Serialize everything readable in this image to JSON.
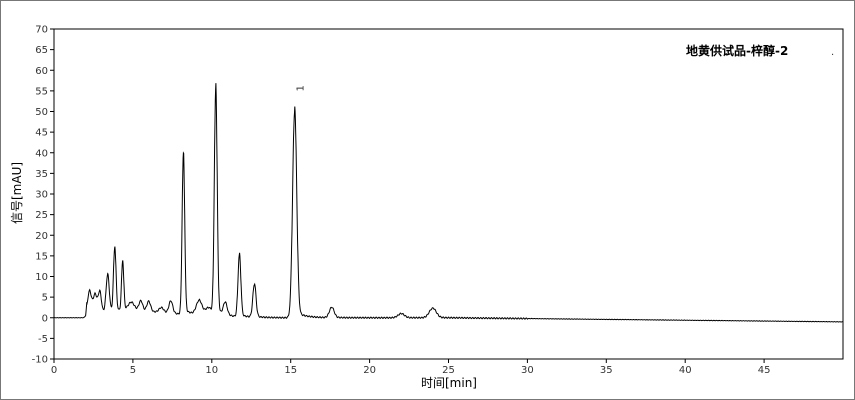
{
  "chart_data": {
    "type": "line",
    "title": "地黄供试品-梓醇-2",
    "xlabel": "时间[min]",
    "ylabel": "信号[mAU]",
    "xlim": [
      0,
      50
    ],
    "ylim": [
      -10,
      70
    ],
    "xticks": [
      0,
      5,
      10,
      15,
      20,
      25,
      30,
      35,
      40,
      45
    ],
    "yticks": [
      -10,
      -5,
      0,
      5,
      10,
      15,
      20,
      25,
      30,
      35,
      40,
      45,
      50,
      55,
      60,
      65,
      70
    ],
    "grid": false,
    "line_color": "#000000",
    "peaks": [
      {
        "rt": 2.25,
        "height": 5.5,
        "width": 0.12
      },
      {
        "rt": 2.6,
        "height": 4.5,
        "width": 0.12
      },
      {
        "rt": 2.9,
        "height": 5,
        "width": 0.1
      },
      {
        "rt": 3.4,
        "height": 9,
        "width": 0.1
      },
      {
        "rt": 3.85,
        "height": 15.5,
        "width": 0.08
      },
      {
        "rt": 4.35,
        "height": 12,
        "width": 0.07
      },
      {
        "rt": 4.9,
        "height": 2,
        "width": 0.2
      },
      {
        "rt": 5.5,
        "height": 2.5,
        "width": 0.12
      },
      {
        "rt": 6.0,
        "height": 2.5,
        "width": 0.12
      },
      {
        "rt": 6.8,
        "height": 1.2,
        "width": 0.15
      },
      {
        "rt": 7.4,
        "height": 3,
        "width": 0.12
      },
      {
        "rt": 8.2,
        "height": 39,
        "width": 0.08
      },
      {
        "rt": 9.2,
        "height": 3.5,
        "width": 0.18
      },
      {
        "rt": 9.8,
        "height": 2,
        "width": 0.2
      },
      {
        "rt": 10.25,
        "height": 55,
        "width": 0.09
      },
      {
        "rt": 10.85,
        "height": 3,
        "width": 0.12
      },
      {
        "rt": 11.75,
        "height": 15,
        "width": 0.09
      },
      {
        "rt": 12.7,
        "height": 8,
        "width": 0.1
      },
      {
        "rt": 15.25,
        "height": 50,
        "width": 0.13
      },
      {
        "rt": 17.6,
        "height": 2.5,
        "width": 0.15
      },
      {
        "rt": 22.0,
        "height": 1,
        "width": 0.2
      },
      {
        "rt": 24.0,
        "height": 2.3,
        "width": 0.22
      }
    ],
    "baseline_end": -1,
    "peak_labels": [
      {
        "rt": 15.25,
        "text": "1"
      }
    ]
  }
}
